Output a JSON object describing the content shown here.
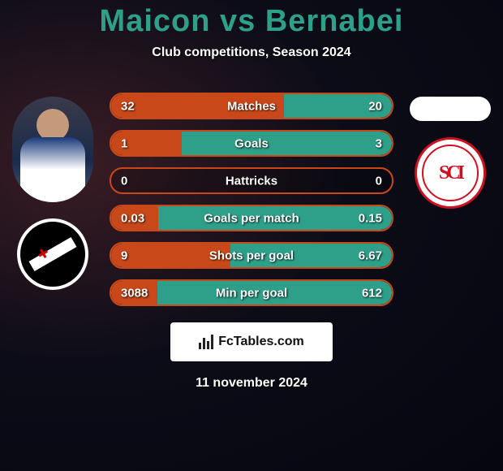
{
  "title": "Maicon vs Bernabei",
  "subtitle": "Club competitions, Season 2024",
  "footer_site": "FcTables.com",
  "footer_date": "11 november 2024",
  "colors": {
    "title": "#2ea089",
    "left_fill": "#c9481a",
    "right_fill": "#2ea089",
    "bar_border": "#c9481a"
  },
  "player_left": {
    "name": "Maicon",
    "club": "Vasco"
  },
  "player_right": {
    "name": "Bernabei",
    "club": "Internacional"
  },
  "stats": [
    {
      "label": "Matches",
      "left_val": "32",
      "right_val": "20",
      "left_pct": 61.5,
      "right_pct": 38.5
    },
    {
      "label": "Goals",
      "left_val": "1",
      "right_val": "3",
      "left_pct": 25.0,
      "right_pct": 75.0
    },
    {
      "label": "Hattricks",
      "left_val": "0",
      "right_val": "0",
      "left_pct": 0.0,
      "right_pct": 0.0
    },
    {
      "label": "Goals per match",
      "left_val": "0.03",
      "right_val": "0.15",
      "left_pct": 16.7,
      "right_pct": 83.3
    },
    {
      "label": "Shots per goal",
      "left_val": "9",
      "right_val": "6.67",
      "left_pct": 42.6,
      "right_pct": 57.4
    },
    {
      "label": "Min per goal",
      "left_val": "3088",
      "right_val": "612",
      "left_pct": 16.5,
      "right_pct": 83.5
    }
  ]
}
